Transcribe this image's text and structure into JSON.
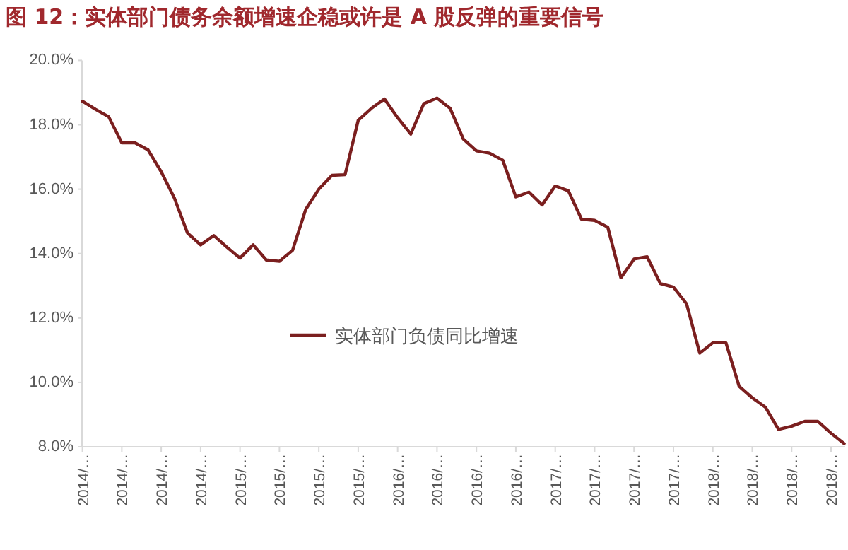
{
  "chart_data": {
    "type": "line",
    "title": "图 12：实体部门债务余额增速企稳或许是 A 股反弹的重要信号",
    "categories": [
      "2014/…",
      null,
      null,
      "2014/…",
      null,
      null,
      "2014/…",
      null,
      null,
      "2014/…",
      null,
      null,
      "2015/…",
      null,
      null,
      "2015/…",
      null,
      null,
      "2015/…",
      null,
      null,
      "2015/…",
      null,
      null,
      "2016/…",
      null,
      null,
      "2016/…",
      null,
      null,
      "2016/…",
      null,
      null,
      "2016/…",
      null,
      null,
      "2017/…",
      null,
      null,
      "2017/…",
      null,
      null,
      "2017/…",
      null,
      null,
      "2017/…",
      null,
      null,
      "2018/…",
      null,
      null,
      "2018/…",
      null,
      null,
      "2018/…",
      null,
      null,
      "2018/…",
      null
    ],
    "series": [
      {
        "name": "实体部门负债同比增速",
        "color": "#7b1f1f",
        "values": [
          18.73,
          18.48,
          18.25,
          17.44,
          17.44,
          17.22,
          16.54,
          15.73,
          14.64,
          14.27,
          14.56,
          14.2,
          13.86,
          14.27,
          13.8,
          13.76,
          14.1,
          15.37,
          16.0,
          16.43,
          16.45,
          18.14,
          18.51,
          18.8,
          18.22,
          17.71,
          18.66,
          18.83,
          18.51,
          17.56,
          17.19,
          17.12,
          16.9,
          15.76,
          15.91,
          15.51,
          16.1,
          15.95,
          15.07,
          15.03,
          14.82,
          13.25,
          13.83,
          13.9,
          13.07,
          12.96,
          12.44,
          10.91,
          11.23,
          11.23,
          9.88,
          9.52,
          9.23,
          8.54,
          8.64,
          8.79,
          8.79,
          8.42,
          8.1
        ]
      }
    ],
    "ylim": [
      8,
      20
    ],
    "yticks": [
      {
        "value": 8,
        "label": "8.0%"
      },
      {
        "value": 10,
        "label": "10.0%"
      },
      {
        "value": 12,
        "label": "12.0%"
      },
      {
        "value": 14,
        "label": "14.0%"
      },
      {
        "value": 16,
        "label": "16.0%"
      },
      {
        "value": 18,
        "label": "18.0%"
      },
      {
        "value": 20,
        "label": "20.0%"
      }
    ],
    "legend": "center"
  }
}
